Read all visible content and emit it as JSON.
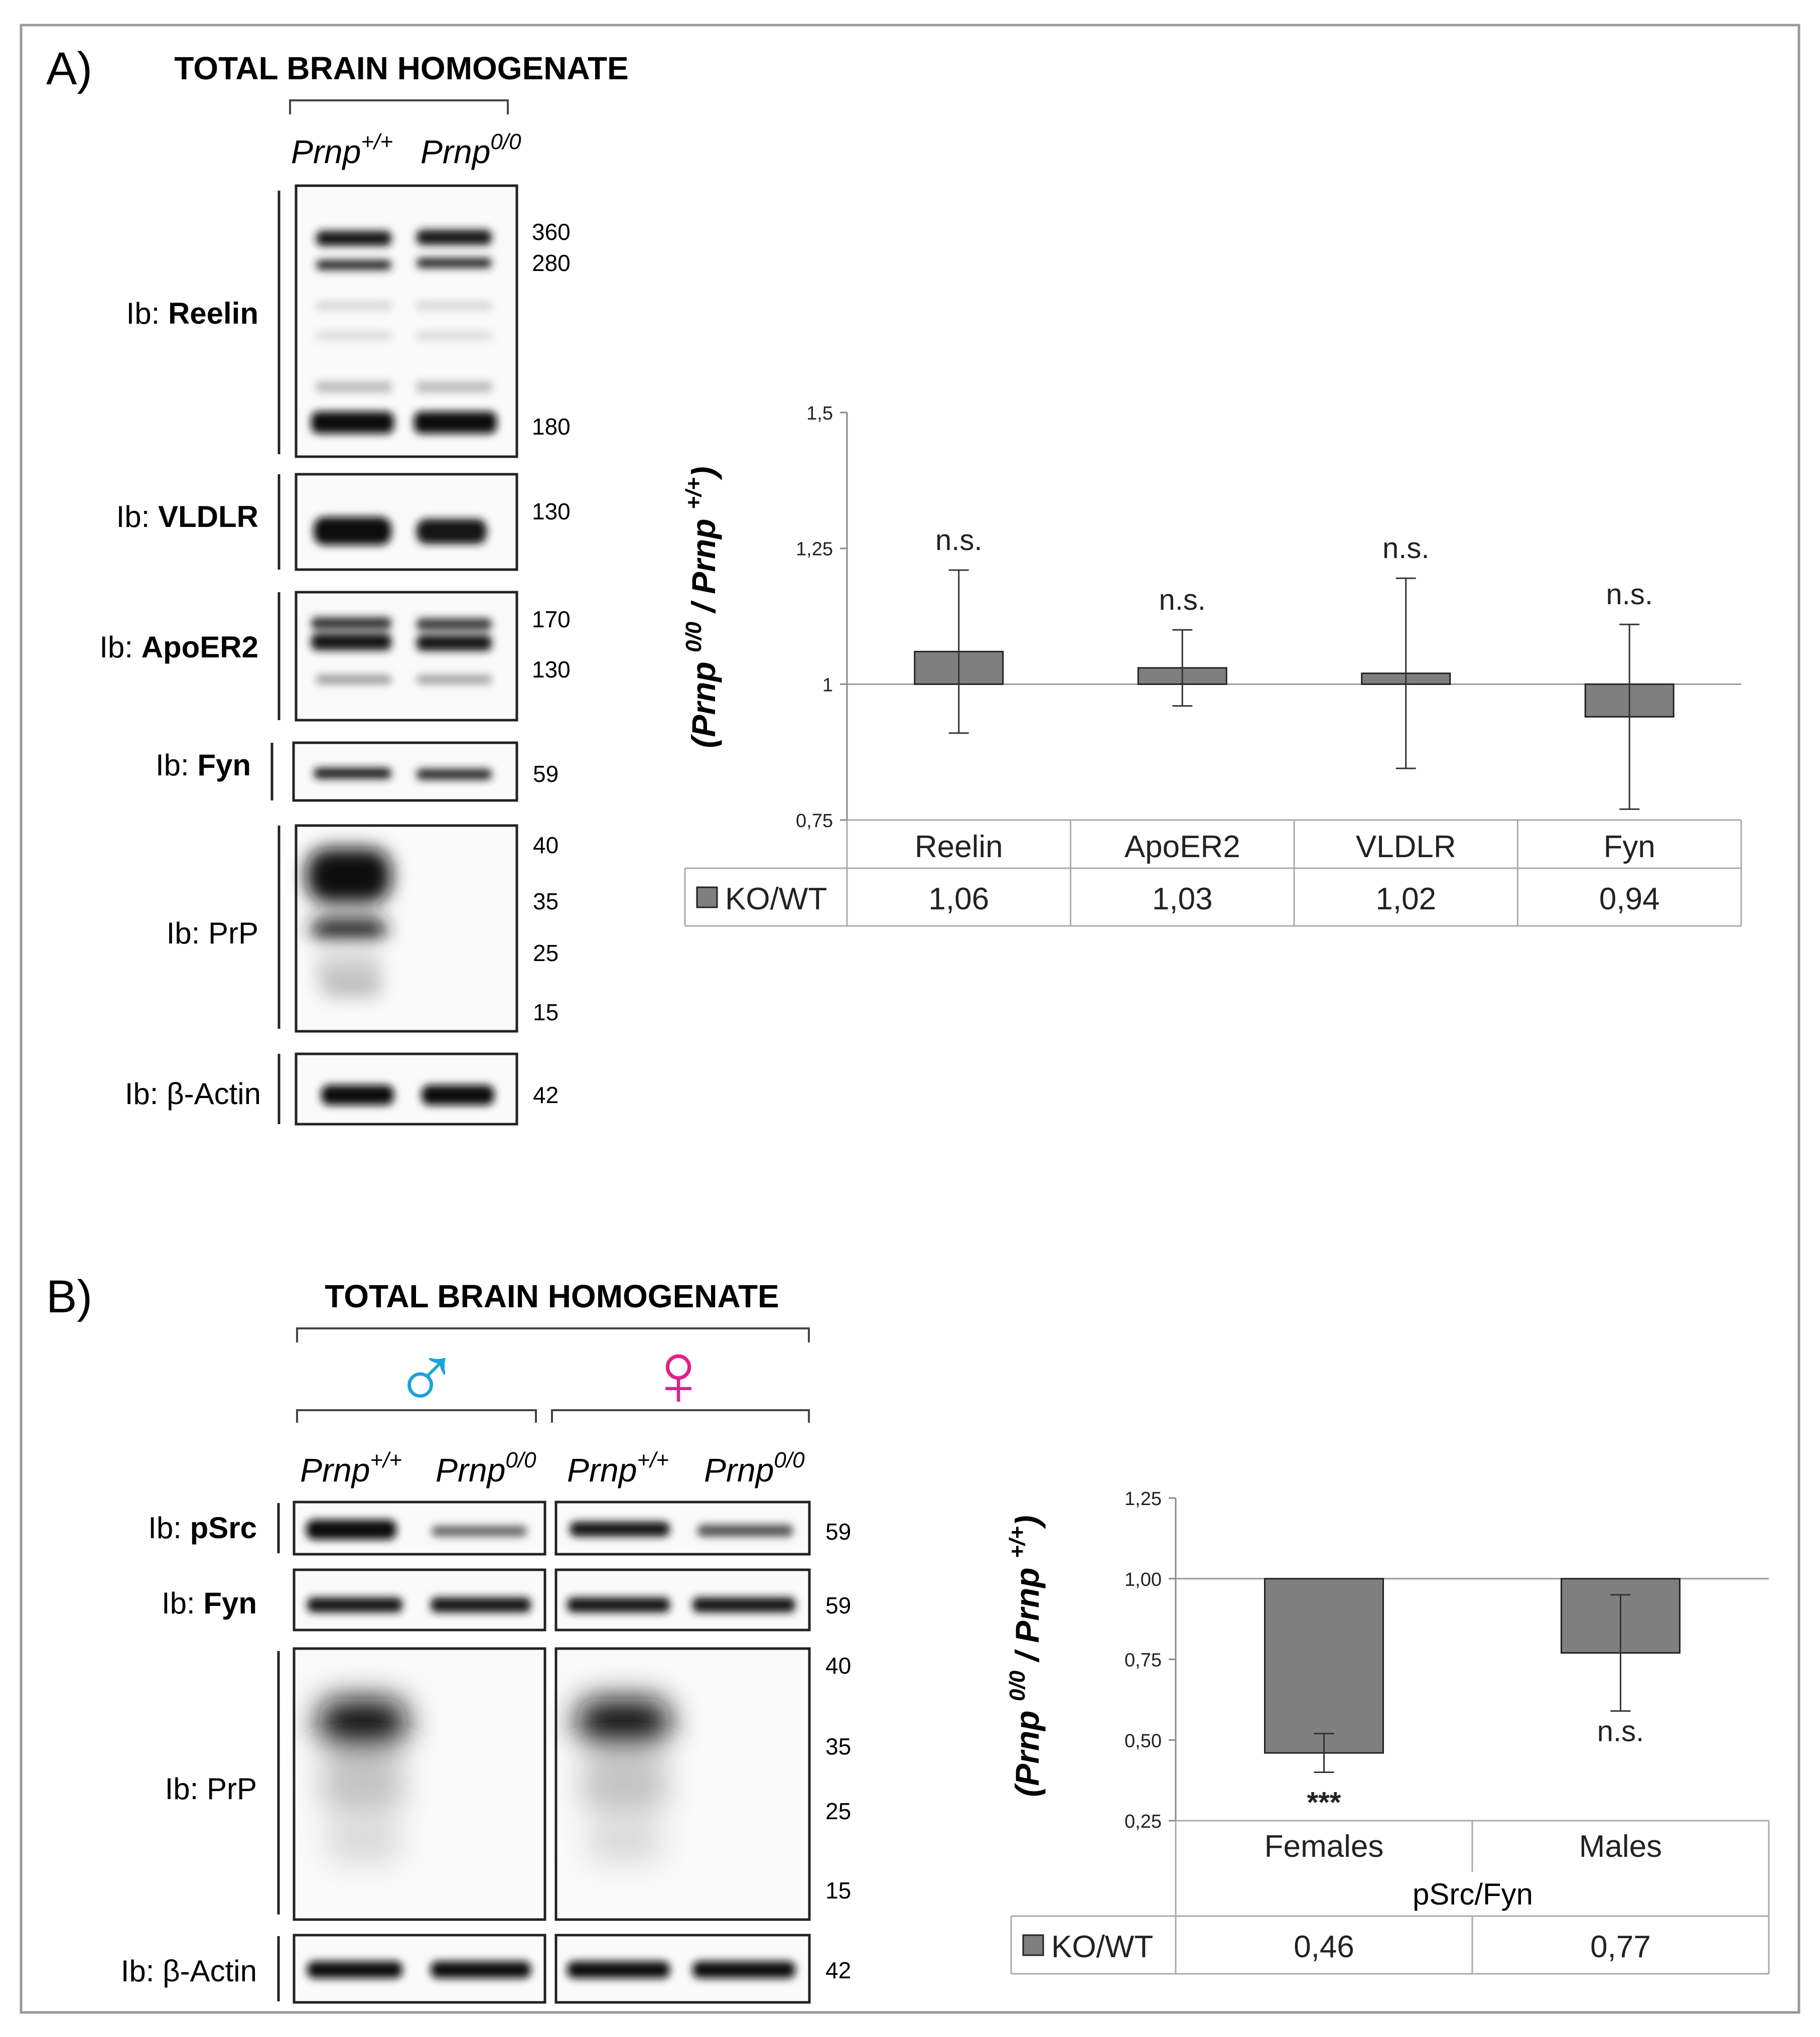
{
  "panelA": {
    "label": "A)",
    "title": "TOTAL BRAIN HOMOGENATE",
    "lanes": [
      {
        "name": "Prnp",
        "sup": "+/+"
      },
      {
        "name": "Prnp",
        "sup": "0/0"
      }
    ],
    "blots": [
      {
        "prefix": "Ib: ",
        "target": "Reelin",
        "bold": true,
        "mw": [
          "360",
          "280",
          "180"
        ]
      },
      {
        "prefix": "Ib: ",
        "target": "VLDLR",
        "bold": true,
        "mw": [
          "130"
        ]
      },
      {
        "prefix": "Ib: ",
        "target": "ApoER2",
        "bold": true,
        "mw": [
          "170",
          "130"
        ]
      },
      {
        "prefix": "Ib: ",
        "target": "Fyn",
        "bold": true,
        "mw": [
          "59"
        ]
      },
      {
        "prefix": "Ib: ",
        "target": "PrP",
        "bold": false,
        "mw": [
          "40",
          "35",
          "25",
          "15"
        ]
      },
      {
        "prefix": "Ib: ",
        "target": "β-Actin",
        "bold": false,
        "mw": [
          "42"
        ]
      }
    ]
  },
  "panelB": {
    "label": "B)",
    "title": "TOTAL BRAIN HOMOGENATE",
    "sexes": [
      {
        "symbol": "♂",
        "color": "#1aa3dc"
      },
      {
        "symbol": "♀",
        "color": "#e0218a"
      }
    ],
    "lanes": [
      {
        "name": "Prnp",
        "sup": "+/+"
      },
      {
        "name": "Prnp",
        "sup": "0/0"
      },
      {
        "name": "Prnp",
        "sup": "+/+"
      },
      {
        "name": "Prnp",
        "sup": "0/0"
      }
    ],
    "blots": [
      {
        "prefix": "Ib: ",
        "target": "pSrc",
        "bold": true,
        "mw": [
          "59"
        ]
      },
      {
        "prefix": "Ib: ",
        "target": "Fyn",
        "bold": true,
        "mw": [
          "59"
        ]
      },
      {
        "prefix": "Ib: ",
        "target": "PrP",
        "bold": false,
        "mw": [
          "40",
          "35",
          "25",
          "15"
        ]
      },
      {
        "prefix": "Ib: ",
        "target": "β-Actin",
        "bold": false,
        "mw": [
          "42"
        ]
      }
    ]
  },
  "chart_data": [
    {
      "type": "bar",
      "categories": [
        "Reelin",
        "ApoER2",
        "VLDLR",
        "Fyn"
      ],
      "series": [
        {
          "name": "KO/WT",
          "values": [
            1.06,
            1.03,
            1.02,
            0.94
          ],
          "value_labels": [
            "1,06",
            "1,03",
            "1,02",
            "0,94"
          ],
          "error": [
            0.15,
            0.07,
            0.175,
            0.17
          ]
        }
      ],
      "significance": [
        "n.s.",
        "n.s.",
        "n.s.",
        "n.s."
      ],
      "ylabel": {
        "parts": [
          "(Prnp ",
          "0/0",
          " / Prnp ",
          "+/+",
          ")"
        ]
      },
      "ylim": [
        0.75,
        1.5
      ],
      "yticks": [
        0.75,
        1,
        1.25,
        1.5
      ],
      "ytick_labels": [
        "0,75",
        "1",
        "1,25",
        "1,5"
      ],
      "baseline": 1,
      "legend_marker_color": "#7f7f7f"
    },
    {
      "type": "bar",
      "categories": [
        "Females",
        "Males"
      ],
      "group_label": "pSrc/Fyn",
      "series": [
        {
          "name": "KO/WT",
          "values": [
            0.46,
            0.77
          ],
          "value_labels": [
            "0,46",
            "0,77"
          ],
          "error": [
            0.06,
            0.18
          ]
        }
      ],
      "significance": [
        "***",
        "n.s."
      ],
      "ylabel": {
        "parts": [
          "(Prnp ",
          "0/0",
          " / Prnp ",
          "+/+",
          ")"
        ]
      },
      "ylim": [
        0.25,
        1.25
      ],
      "yticks": [
        0.25,
        0.5,
        0.75,
        1.0,
        1.25
      ],
      "ytick_labels": [
        "0,25",
        "0,50",
        "0,75",
        "1,00",
        "1,25"
      ],
      "baseline": 1,
      "legend_marker_color": "#7f7f7f"
    }
  ],
  "colors": {
    "bar": "#7f7f7f",
    "border": "#888888",
    "ink": "#111111"
  }
}
